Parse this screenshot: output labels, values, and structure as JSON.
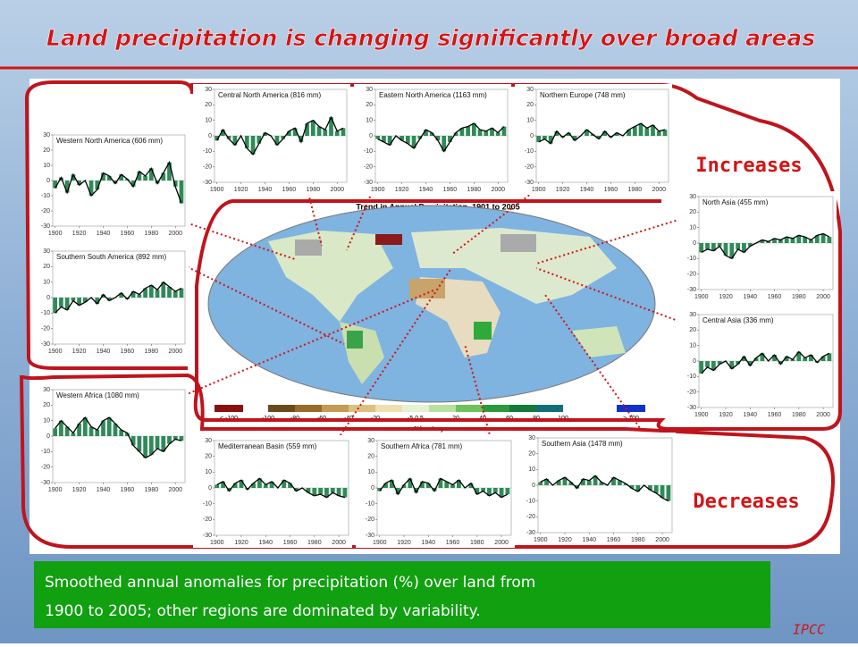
{
  "title": "Land precipitation is changing significantly over broad areas",
  "labels": {
    "increases": "Increases",
    "decreases": "Decreases"
  },
  "caption": [
    "Smoothed annual anomalies for precipitation (%) over land from",
    "1900 to 2005; other regions are dominated by variability."
  ],
  "source": "IPCC",
  "map": {
    "title": "Trend in Annual Precipitation, 1901 to 2005",
    "legend": [
      "< -100",
      "-100",
      "-80",
      "-60",
      "-40",
      "-20",
      "-5 0 5",
      "20",
      "40",
      "60",
      "80",
      "100",
      "> 100"
    ],
    "unit": "%/century"
  },
  "chart_data": [
    {
      "type": "bar",
      "title": "Western North America (606 mm)",
      "color": "#2e8b57",
      "x": [
        1900,
        1905,
        1910,
        1915,
        1920,
        1925,
        1930,
        1935,
        1940,
        1945,
        1950,
        1955,
        1960,
        1965,
        1970,
        1975,
        1980,
        1985,
        1990,
        1995,
        2000,
        2005
      ],
      "values": [
        -5,
        2,
        -8,
        4,
        -3,
        0,
        -10,
        -6,
        5,
        3,
        -2,
        4,
        1,
        -4,
        6,
        3,
        8,
        -2,
        5,
        12,
        -4,
        -15
      ],
      "xlim": [
        1898,
        2008
      ],
      "ylim": [
        -30,
        30
      ],
      "xticks": [
        1900,
        1920,
        1940,
        1960,
        1980,
        2000
      ],
      "yticks": [
        -30,
        -20,
        -10,
        0,
        10,
        20,
        30
      ]
    },
    {
      "type": "bar",
      "title": "Central North America (816 mm)",
      "color": "#2e8b57",
      "x": [
        1900,
        1905,
        1910,
        1915,
        1920,
        1925,
        1930,
        1935,
        1940,
        1945,
        1950,
        1955,
        1960,
        1965,
        1970,
        1975,
        1980,
        1985,
        1990,
        1995,
        2000,
        2005
      ],
      "values": [
        -3,
        4,
        -2,
        -6,
        0,
        -8,
        -12,
        -5,
        2,
        0,
        -6,
        -2,
        3,
        5,
        -4,
        8,
        10,
        6,
        4,
        12,
        3,
        5
      ],
      "xlim": [
        1898,
        2008
      ],
      "ylim": [
        -30,
        30
      ],
      "xticks": [
        1900,
        1920,
        1940,
        1960,
        1980,
        2000
      ],
      "yticks": [
        -30,
        -20,
        -10,
        0,
        10,
        20,
        30
      ]
    },
    {
      "type": "bar",
      "title": "Eastern North America (1163 mm)",
      "color": "#2e8b57",
      "x": [
        1900,
        1905,
        1910,
        1915,
        1920,
        1925,
        1930,
        1935,
        1940,
        1945,
        1950,
        1955,
        1960,
        1965,
        1970,
        1975,
        1980,
        1985,
        1990,
        1995,
        2000,
        2005
      ],
      "values": [
        -2,
        -4,
        -6,
        0,
        -3,
        -5,
        -8,
        -2,
        4,
        2,
        -3,
        -10,
        -4,
        2,
        5,
        6,
        8,
        4,
        3,
        5,
        2,
        6
      ],
      "xlim": [
        1898,
        2008
      ],
      "ylim": [
        -30,
        30
      ],
      "xticks": [
        1900,
        1920,
        1940,
        1960,
        1980,
        2000
      ],
      "yticks": [
        -30,
        -20,
        -10,
        0,
        10,
        20,
        30
      ]
    },
    {
      "type": "bar",
      "title": "Northern Europe (748 mm)",
      "color": "#2e8b57",
      "x": [
        1900,
        1905,
        1910,
        1915,
        1920,
        1925,
        1930,
        1935,
        1940,
        1945,
        1950,
        1955,
        1960,
        1965,
        1970,
        1975,
        1980,
        1985,
        1990,
        1995,
        2000,
        2005
      ],
      "values": [
        -4,
        -2,
        -5,
        3,
        -1,
        2,
        -3,
        0,
        4,
        1,
        -2,
        3,
        -1,
        2,
        0,
        4,
        6,
        8,
        5,
        7,
        3,
        4
      ],
      "xlim": [
        1898,
        2008
      ],
      "ylim": [
        -30,
        30
      ],
      "xticks": [
        1900,
        1920,
        1940,
        1960,
        1980,
        2000
      ],
      "yticks": [
        -30,
        -20,
        -10,
        0,
        10,
        20,
        30
      ]
    },
    {
      "type": "bar",
      "title": "North Asia (455 mm)",
      "color": "#2e8b57",
      "x": [
        1900,
        1905,
        1910,
        1915,
        1920,
        1925,
        1930,
        1935,
        1940,
        1945,
        1950,
        1955,
        1960,
        1965,
        1970,
        1975,
        1980,
        1985,
        1990,
        1995,
        2000,
        2005
      ],
      "values": [
        -6,
        -4,
        -5,
        -2,
        -8,
        -10,
        -4,
        -6,
        -2,
        0,
        2,
        1,
        3,
        2,
        4,
        3,
        5,
        4,
        2,
        5,
        6,
        4
      ],
      "xlim": [
        1898,
        2008
      ],
      "ylim": [
        -30,
        30
      ],
      "xticks": [
        1900,
        1920,
        1940,
        1960,
        1980,
        2000
      ],
      "yticks": [
        -30,
        -20,
        -10,
        0,
        10,
        20,
        30
      ]
    },
    {
      "type": "bar",
      "title": "Southern South America (892 mm)",
      "color": "#2e8b57",
      "x": [
        1900,
        1905,
        1910,
        1915,
        1920,
        1925,
        1930,
        1935,
        1940,
        1945,
        1950,
        1955,
        1960,
        1965,
        1970,
        1975,
        1980,
        1985,
        1990,
        1995,
        2000,
        2005
      ],
      "values": [
        -10,
        -6,
        -8,
        -2,
        -5,
        -3,
        0,
        -4,
        2,
        -2,
        0,
        3,
        -1,
        4,
        2,
        6,
        8,
        5,
        10,
        7,
        4,
        6
      ],
      "xlim": [
        1898,
        2008
      ],
      "ylim": [
        -30,
        30
      ],
      "xticks": [
        1900,
        1920,
        1940,
        1960,
        1980,
        2000
      ],
      "yticks": [
        -30,
        -20,
        -10,
        0,
        10,
        20,
        30
      ]
    },
    {
      "type": "bar",
      "title": "Central Asia (336 mm)",
      "color": "#2e8b57",
      "x": [
        1900,
        1905,
        1910,
        1915,
        1920,
        1925,
        1930,
        1935,
        1940,
        1945,
        1950,
        1955,
        1960,
        1965,
        1970,
        1975,
        1980,
        1985,
        1990,
        1995,
        2000,
        2005
      ],
      "values": [
        -8,
        -4,
        -6,
        -2,
        0,
        -5,
        -2,
        3,
        -3,
        2,
        5,
        0,
        4,
        -2,
        3,
        1,
        6,
        2,
        4,
        -1,
        3,
        5
      ],
      "xlim": [
        1898,
        2008
      ],
      "ylim": [
        -30,
        30
      ],
      "xticks": [
        1900,
        1920,
        1940,
        1960,
        1980,
        2000
      ],
      "yticks": [
        -30,
        -20,
        -10,
        0,
        10,
        20,
        30
      ]
    },
    {
      "type": "bar",
      "title": "Western Africa (1080 mm)",
      "color": "#2e8b57",
      "x": [
        1900,
        1905,
        1910,
        1915,
        1920,
        1925,
        1930,
        1935,
        1940,
        1945,
        1950,
        1955,
        1960,
        1965,
        1970,
        1975,
        1980,
        1985,
        1990,
        1995,
        2000,
        2005
      ],
      "values": [
        5,
        10,
        6,
        2,
        8,
        12,
        6,
        4,
        10,
        12,
        8,
        4,
        2,
        -6,
        -10,
        -14,
        -12,
        -8,
        -10,
        -5,
        -2,
        -3
      ],
      "xlim": [
        1898,
        2008
      ],
      "ylim": [
        -30,
        30
      ],
      "xticks": [
        1900,
        1920,
        1940,
        1960,
        1980,
        2000
      ],
      "yticks": [
        -30,
        -20,
        -10,
        0,
        10,
        20,
        30
      ]
    },
    {
      "type": "bar",
      "title": "Mediterranean Basin (559 mm)",
      "color": "#2e8b57",
      "x": [
        1900,
        1905,
        1910,
        1915,
        1920,
        1925,
        1930,
        1935,
        1940,
        1945,
        1950,
        1955,
        1960,
        1965,
        1970,
        1975,
        1980,
        1985,
        1990,
        1995,
        2000,
        2005
      ],
      "values": [
        2,
        4,
        -2,
        3,
        5,
        -1,
        3,
        6,
        2,
        4,
        0,
        5,
        3,
        -2,
        0,
        -3,
        -5,
        -4,
        -6,
        -3,
        -5,
        -6
      ],
      "xlim": [
        1898,
        2008
      ],
      "ylim": [
        -30,
        30
      ],
      "xticks": [
        1900,
        1920,
        1940,
        1960,
        1980,
        2000
      ],
      "yticks": [
        -30,
        -20,
        -10,
        0,
        10,
        20,
        30
      ]
    },
    {
      "type": "bar",
      "title": "Southern Africa (781 mm)",
      "color": "#2e8b57",
      "x": [
        1900,
        1905,
        1910,
        1915,
        1920,
        1925,
        1930,
        1935,
        1940,
        1945,
        1950,
        1955,
        1960,
        1965,
        1970,
        1975,
        1980,
        1985,
        1990,
        1995,
        2000,
        2005
      ],
      "values": [
        -2,
        3,
        5,
        -4,
        2,
        6,
        -3,
        4,
        3,
        -2,
        6,
        4,
        2,
        5,
        0,
        3,
        -4,
        -2,
        -5,
        -3,
        -6,
        -4
      ],
      "xlim": [
        1898,
        2008
      ],
      "ylim": [
        -30,
        30
      ],
      "xticks": [
        1900,
        1920,
        1940,
        1960,
        1980,
        2000
      ],
      "yticks": [
        -30,
        -20,
        -10,
        0,
        10,
        20,
        30
      ]
    },
    {
      "type": "bar",
      "title": "Southern Asia (1478 mm)",
      "color": "#2e8b57",
      "x": [
        1900,
        1905,
        1910,
        1915,
        1920,
        1925,
        1930,
        1935,
        1940,
        1945,
        1950,
        1955,
        1960,
        1965,
        1970,
        1975,
        1980,
        1985,
        1990,
        1995,
        2000,
        2005
      ],
      "values": [
        2,
        4,
        0,
        3,
        5,
        2,
        -2,
        4,
        3,
        6,
        2,
        0,
        5,
        3,
        1,
        -2,
        -4,
        0,
        -3,
        -5,
        -8,
        -10
      ],
      "xlim": [
        1898,
        2008
      ],
      "ylim": [
        -30,
        30
      ],
      "xticks": [
        1900,
        1920,
        1940,
        1960,
        1980,
        2000
      ],
      "yticks": [
        -30,
        -20,
        -10,
        0,
        10,
        20,
        30
      ]
    }
  ]
}
